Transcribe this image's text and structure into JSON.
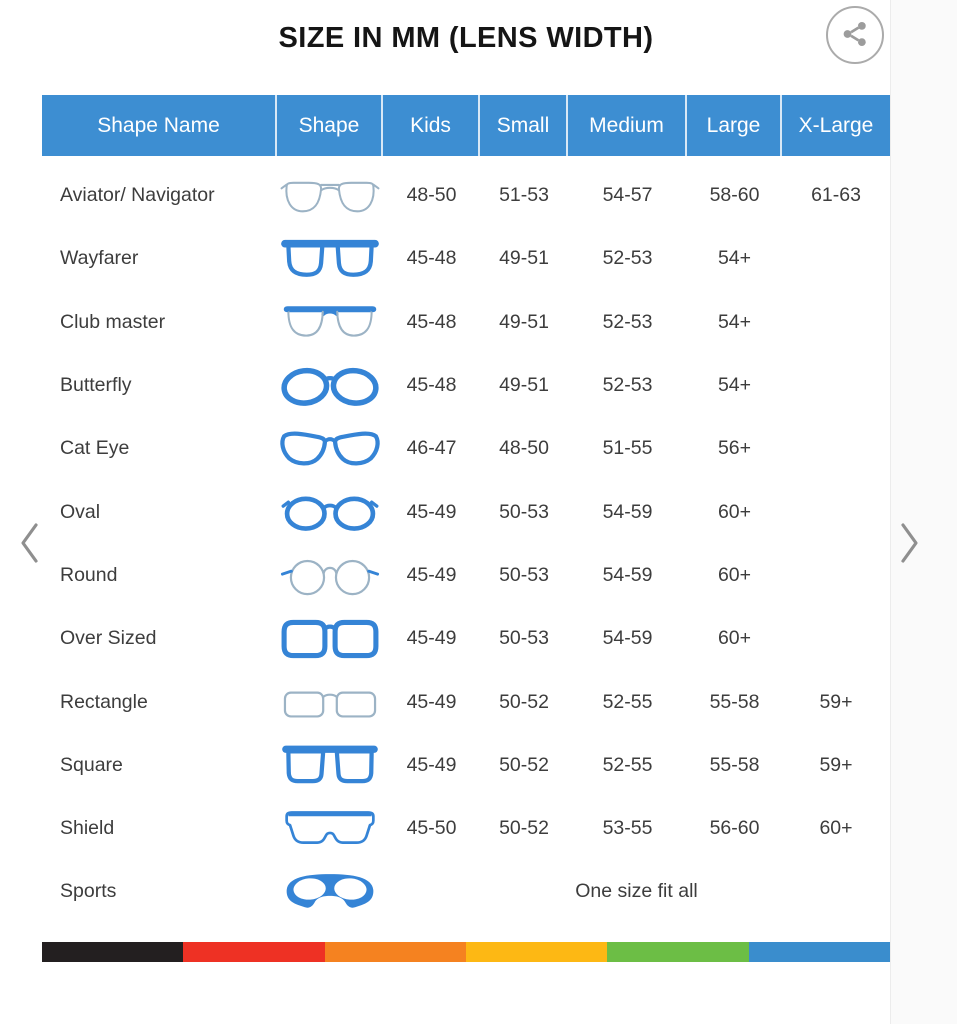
{
  "title": "SIZE IN MM (LENS WIDTH)",
  "carousel": {
    "prev_label": "previous",
    "next_label": "next"
  },
  "table": {
    "headers": [
      "Shape Name",
      "Shape",
      "Kids",
      "Small",
      "Medium",
      "Large",
      "X-Large"
    ],
    "rows": [
      {
        "name": "Aviator/ Navigator",
        "icon": "aviator-glasses-icon",
        "sizes": [
          "48-50",
          "51-53",
          "54-57",
          "58-60",
          "61-63"
        ]
      },
      {
        "name": "Wayfarer",
        "icon": "wayfarer-glasses-icon",
        "sizes": [
          "45-48",
          "49-51",
          "52-53",
          "54+",
          ""
        ]
      },
      {
        "name": "Club master",
        "icon": "clubmaster-glasses-icon",
        "sizes": [
          "45-48",
          "49-51",
          "52-53",
          "54+",
          ""
        ]
      },
      {
        "name": "Butterfly",
        "icon": "butterfly-glasses-icon",
        "sizes": [
          "45-48",
          "49-51",
          "52-53",
          "54+",
          ""
        ]
      },
      {
        "name": "Cat Eye",
        "icon": "cateye-glasses-icon",
        "sizes": [
          "46-47",
          "48-50",
          "51-55",
          "56+",
          ""
        ]
      },
      {
        "name": "Oval",
        "icon": "oval-glasses-icon",
        "sizes": [
          "45-49",
          "50-53",
          "54-59",
          "60+",
          ""
        ]
      },
      {
        "name": "Round",
        "icon": "round-glasses-icon",
        "sizes": [
          "45-49",
          "50-53",
          "54-59",
          "60+",
          ""
        ]
      },
      {
        "name": "Over Sized",
        "icon": "oversized-glasses-icon",
        "sizes": [
          "45-49",
          "50-53",
          "54-59",
          "60+",
          ""
        ]
      },
      {
        "name": "Rectangle",
        "icon": "rectangle-glasses-icon",
        "sizes": [
          "45-49",
          "50-52",
          "52-55",
          "55-58",
          "59+"
        ]
      },
      {
        "name": "Square",
        "icon": "square-glasses-icon",
        "sizes": [
          "45-49",
          "50-52",
          "52-55",
          "55-58",
          "59+"
        ]
      },
      {
        "name": "Shield",
        "icon": "shield-glasses-icon",
        "sizes": [
          "45-50",
          "50-52",
          "53-55",
          "56-60",
          "60+"
        ]
      },
      {
        "name": "Sports",
        "icon": "sports-glasses-icon",
        "span_text": "One size fit all"
      }
    ]
  },
  "footer_stripe": [
    "#231f20",
    "#ee3124",
    "#f58220",
    "#fdb814",
    "#6cbe45",
    "#3a8dcd"
  ],
  "colors": {
    "header_bg": "#3d8ed2",
    "header_text": "#ffffff",
    "frame_bold": "#3584d6",
    "frame_thin": "#9cb3c5",
    "body_text": "#3d3d3d",
    "chevron": "#8f8f8f",
    "share_icon": "#9c9c9c"
  }
}
